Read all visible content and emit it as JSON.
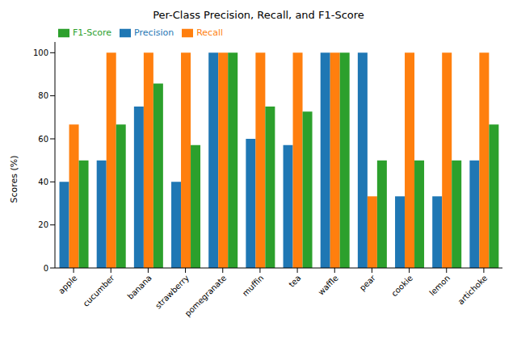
{
  "chart_data": {
    "type": "bar",
    "title": "Per-Class Precision, Recall, and F1-Score",
    "y_label": "Scores (%)",
    "categories": [
      "apple",
      "cucumber",
      "banana",
      "strawberry",
      "pomegranate",
      "muffin",
      "tea",
      "waffle",
      "pear",
      "cookie",
      "lemon",
      "artichoke"
    ],
    "series": [
      {
        "name": "Precision",
        "color": "#1f77b4",
        "values": [
          40,
          50,
          75,
          40,
          100,
          60,
          57.1,
          100,
          100,
          33.3,
          33.3,
          50
        ]
      },
      {
        "name": "Recall",
        "color": "#ff7f0e",
        "values": [
          66.7,
          100,
          100,
          100,
          100,
          100,
          100,
          100,
          33.3,
          100,
          100,
          100
        ]
      },
      {
        "name": "F1-Score",
        "color": "#2ca02c",
        "values": [
          50,
          66.7,
          85.7,
          57.1,
          100,
          75,
          72.7,
          100,
          50,
          50,
          50,
          66.7
        ]
      }
    ],
    "ylim": [
      0,
      105
    ],
    "yticks": [
      0,
      20,
      40,
      60,
      80,
      100
    ],
    "grid": false,
    "legend": "upper left"
  }
}
